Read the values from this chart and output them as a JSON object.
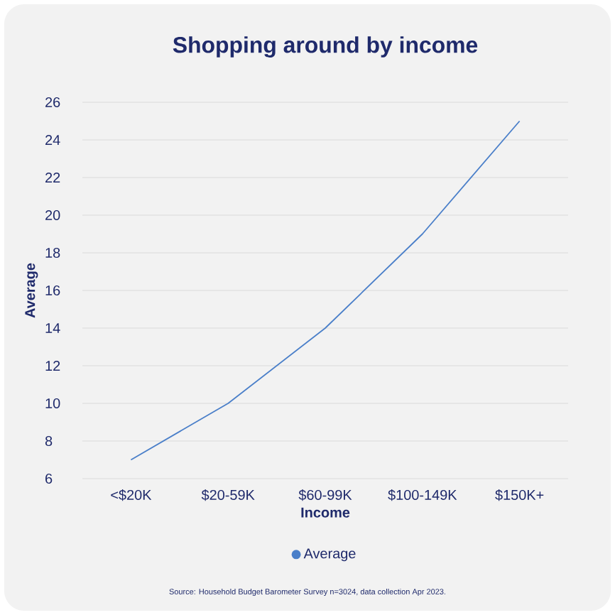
{
  "chart_data": {
    "type": "line",
    "title": "Shopping around by income",
    "xlabel": "Income",
    "ylabel": "Average",
    "categories": [
      "<$20K",
      "$20-59K",
      "$60-99K",
      "$100-149K",
      "$150K+"
    ],
    "series": [
      {
        "name": "Average",
        "color": "#4a7fc9",
        "values": [
          7,
          10,
          14,
          19,
          25
        ]
      }
    ],
    "ylim": [
      6,
      26
    ],
    "yticks": [
      6,
      8,
      10,
      12,
      14,
      16,
      18,
      20,
      22,
      24,
      26
    ],
    "grid": "y",
    "legend": "bottom",
    "annotations": [
      "Source: Household Budget Barometer Survey n=3024, data collection Apr 2023."
    ]
  }
}
